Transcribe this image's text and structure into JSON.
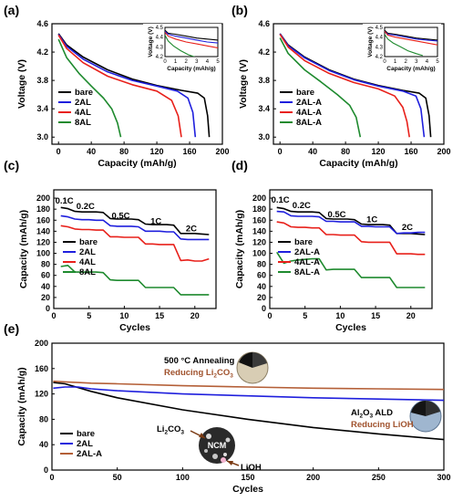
{
  "chart_data": [
    {
      "panel_label": "(a)",
      "type": "line",
      "xlabel": "Capacity (mAh/g)",
      "ylabel": "Voltage (V)",
      "xlim": [
        -8,
        200
      ],
      "ylim": [
        2.9,
        4.6
      ],
      "xticks": [
        0,
        40,
        80,
        120,
        160,
        200
      ],
      "yticks": [
        3.0,
        3.4,
        3.8,
        4.2,
        4.6
      ],
      "legend_position": "lower-left",
      "series": [
        {
          "name": "bare",
          "color": "#000000",
          "x": [
            0,
            10,
            30,
            60,
            90,
            120,
            150,
            170,
            178,
            182,
            184
          ],
          "y": [
            4.46,
            4.3,
            4.13,
            3.95,
            3.82,
            3.73,
            3.66,
            3.62,
            3.55,
            3.3,
            3.0
          ]
        },
        {
          "name": "2AL",
          "color": "#1f1fdd",
          "x": [
            0,
            10,
            30,
            60,
            90,
            120,
            145,
            158,
            164,
            167
          ],
          "y": [
            4.45,
            4.28,
            4.1,
            3.92,
            3.8,
            3.72,
            3.65,
            3.55,
            3.35,
            3.0
          ]
        },
        {
          "name": "4AL",
          "color": "#e8201a",
          "x": [
            0,
            10,
            30,
            60,
            90,
            120,
            138,
            146,
            150
          ],
          "y": [
            4.44,
            4.25,
            4.05,
            3.86,
            3.74,
            3.65,
            3.52,
            3.3,
            3.0
          ]
        },
        {
          "name": "8AL",
          "color": "#1e8a2e",
          "x": [
            0,
            10,
            25,
            40,
            55,
            65,
            72,
            76
          ],
          "y": [
            4.38,
            4.12,
            3.9,
            3.72,
            3.55,
            3.4,
            3.2,
            3.0
          ]
        }
      ],
      "inset": {
        "xlabel": "Capacity (mAh/g)",
        "ylabel": "Voltage (V)",
        "xlim": [
          0,
          5
        ],
        "ylim": [
          4.2,
          4.5
        ],
        "xticks": [
          0,
          1,
          2,
          3,
          4,
          5
        ],
        "yticks": [
          4.2,
          4.3,
          4.4,
          4.5
        ],
        "series": [
          {
            "color": "#000000",
            "x": [
              0,
              0.3,
              1,
              2,
              3,
              4,
              5
            ],
            "y": [
              4.47,
              4.44,
              4.43,
              4.41,
              4.39,
              4.38,
              4.37
            ]
          },
          {
            "color": "#1f1fdd",
            "x": [
              0,
              0.3,
              1,
              2,
              3,
              4,
              5
            ],
            "y": [
              4.46,
              4.43,
              4.41,
              4.39,
              4.37,
              4.35,
              4.34
            ]
          },
          {
            "color": "#e8201a",
            "x": [
              0,
              0.3,
              1,
              2,
              3,
              4,
              5
            ],
            "y": [
              4.45,
              4.41,
              4.38,
              4.35,
              4.33,
              4.31,
              4.29
            ]
          },
          {
            "color": "#1e8a2e",
            "x": [
              0,
              0.3,
              0.8,
              1.5,
              2.2,
              3.0
            ],
            "y": [
              4.42,
              4.36,
              4.31,
              4.26,
              4.22,
              4.19
            ]
          }
        ]
      }
    },
    {
      "panel_label": "(b)",
      "type": "line",
      "xlabel": "Capacity (mAh/g)",
      "ylabel": "Voltage (V)",
      "xlim": [
        -8,
        200
      ],
      "ylim": [
        2.9,
        4.6
      ],
      "xticks": [
        0,
        40,
        80,
        120,
        160,
        200
      ],
      "yticks": [
        3.0,
        3.4,
        3.8,
        4.2,
        4.6
      ],
      "legend_position": "lower-left",
      "series": [
        {
          "name": "bare",
          "color": "#000000",
          "x": [
            0,
            10,
            30,
            60,
            90,
            120,
            150,
            170,
            178,
            182,
            184
          ],
          "y": [
            4.46,
            4.3,
            4.13,
            3.95,
            3.82,
            3.73,
            3.66,
            3.62,
            3.55,
            3.3,
            3.0
          ]
        },
        {
          "name": "2AL-A",
          "color": "#1f1fdd",
          "x": [
            0,
            10,
            30,
            60,
            90,
            120,
            150,
            166,
            172,
            176
          ],
          "y": [
            4.46,
            4.29,
            4.12,
            3.94,
            3.81,
            3.72,
            3.65,
            3.58,
            3.4,
            3.0
          ]
        },
        {
          "name": "4AL-A",
          "color": "#e8201a",
          "x": [
            0,
            10,
            30,
            60,
            90,
            120,
            140,
            150,
            155,
            158
          ],
          "y": [
            4.45,
            4.27,
            4.08,
            3.9,
            3.77,
            3.68,
            3.58,
            3.42,
            3.22,
            3.0
          ]
        },
        {
          "name": "8AL-A",
          "color": "#1e8a2e",
          "x": [
            0,
            10,
            30,
            50,
            70,
            85,
            93,
            98
          ],
          "y": [
            4.4,
            4.18,
            3.95,
            3.78,
            3.6,
            3.45,
            3.28,
            3.0
          ]
        }
      ],
      "inset": {
        "xlabel": "Capacity (mAh/g)",
        "ylabel": "Voltage (V)",
        "xlim": [
          0,
          5
        ],
        "ylim": [
          4.2,
          4.5
        ],
        "xticks": [
          0,
          1,
          2,
          3,
          4,
          5
        ],
        "yticks": [
          4.2,
          4.3,
          4.4,
          4.5
        ],
        "series": [
          {
            "color": "#000000",
            "x": [
              0,
              0.3,
              1,
              2,
              3,
              4,
              5
            ],
            "y": [
              4.47,
              4.44,
              4.43,
              4.41,
              4.39,
              4.38,
              4.37
            ]
          },
          {
            "color": "#1f1fdd",
            "x": [
              0,
              0.3,
              1,
              2,
              3,
              4,
              5
            ],
            "y": [
              4.46,
              4.43,
              4.42,
              4.4,
              4.38,
              4.37,
              4.36
            ]
          },
          {
            "color": "#e8201a",
            "x": [
              0,
              0.3,
              1,
              2,
              3,
              4,
              5
            ],
            "y": [
              4.46,
              4.42,
              4.4,
              4.38,
              4.36,
              4.34,
              4.32
            ]
          },
          {
            "color": "#1e8a2e",
            "x": [
              0,
              0.3,
              0.8,
              1.5,
              2.2,
              3.0,
              3.6
            ],
            "y": [
              4.43,
              4.38,
              4.34,
              4.3,
              4.26,
              4.23,
              4.21
            ]
          }
        ]
      }
    },
    {
      "panel_label": "(c)",
      "type": "line",
      "xlabel": "Cycles",
      "ylabel": "Capacity (mAh/g)",
      "xlim": [
        0,
        23
      ],
      "ylim": [
        0,
        215
      ],
      "xticks": [
        0,
        5,
        10,
        15,
        20
      ],
      "yticks": [
        0,
        20,
        40,
        60,
        80,
        100,
        120,
        140,
        160,
        180,
        200
      ],
      "legend_position": "lower-left",
      "rate_labels": [
        {
          "text": "0.1C",
          "x": 1.5,
          "y": 190
        },
        {
          "text": "0.2C",
          "x": 4.5,
          "y": 180
        },
        {
          "text": "0.5C",
          "x": 9.5,
          "y": 163
        },
        {
          "text": "1C",
          "x": 14.5,
          "y": 153
        },
        {
          "text": "2C",
          "x": 19.5,
          "y": 140
        }
      ],
      "series": [
        {
          "name": "bare",
          "color": "#000000",
          "x": [
            1,
            2,
            3,
            4,
            5,
            6,
            7,
            8,
            9,
            10,
            11,
            12,
            13,
            14,
            15,
            16,
            17,
            18,
            19,
            20,
            21,
            22
          ],
          "y": [
            183,
            181,
            176,
            175,
            175,
            175,
            174,
            163,
            162,
            162,
            162,
            161,
            153,
            152,
            152,
            152,
            151,
            136,
            136,
            136,
            135,
            134
          ]
        },
        {
          "name": "2AL",
          "color": "#1f1fdd",
          "x": [
            1,
            2,
            3,
            4,
            5,
            6,
            7,
            8,
            9,
            10,
            11,
            12,
            13,
            14,
            15,
            16,
            17,
            18,
            19,
            20,
            21,
            22
          ],
          "y": [
            168,
            166,
            162,
            161,
            161,
            160,
            160,
            150,
            149,
            149,
            149,
            148,
            140,
            140,
            140,
            139,
            139,
            126,
            125,
            125,
            125,
            125
          ]
        },
        {
          "name": "4AL",
          "color": "#e8201a",
          "x": [
            1,
            2,
            3,
            4,
            5,
            6,
            7,
            8,
            9,
            10,
            11,
            12,
            13,
            14,
            15,
            16,
            17,
            18,
            19,
            20,
            21,
            22
          ],
          "y": [
            150,
            148,
            144,
            143,
            143,
            142,
            142,
            130,
            130,
            129,
            129,
            129,
            117,
            117,
            116,
            116,
            116,
            87,
            88,
            86,
            86,
            90
          ]
        },
        {
          "name": "8AL",
          "color": "#1e8a2e",
          "x": [
            1,
            2,
            3,
            4,
            5,
            6,
            7,
            8,
            9,
            10,
            11,
            12,
            13,
            14,
            15,
            16,
            17,
            18,
            19,
            20,
            21,
            22
          ],
          "y": [
            76,
            78,
            66,
            66,
            66,
            66,
            65,
            52,
            51,
            51,
            51,
            51,
            38,
            38,
            38,
            38,
            38,
            25,
            25,
            25,
            25,
            25
          ]
        }
      ]
    },
    {
      "panel_label": "(d)",
      "type": "line",
      "xlabel": "Cycles",
      "ylabel": "Capacity (mAh/g)",
      "xlim": [
        0,
        23
      ],
      "ylim": [
        0,
        215
      ],
      "xticks": [
        0,
        5,
        10,
        15,
        20
      ],
      "yticks": [
        0,
        20,
        40,
        60,
        80,
        100,
        120,
        140,
        160,
        180,
        200
      ],
      "legend_position": "lower-left",
      "rate_labels": [
        {
          "text": "0.1C",
          "x": 1.5,
          "y": 192
        },
        {
          "text": "0.2C",
          "x": 4.5,
          "y": 182
        },
        {
          "text": "0.5C",
          "x": 9.5,
          "y": 165
        },
        {
          "text": "1C",
          "x": 14.5,
          "y": 156
        },
        {
          "text": "2C",
          "x": 19.5,
          "y": 142
        }
      ],
      "series": [
        {
          "name": "bare",
          "color": "#000000",
          "x": [
            1,
            2,
            3,
            4,
            5,
            6,
            7,
            8,
            9,
            10,
            11,
            12,
            13,
            14,
            15,
            16,
            17,
            18,
            19,
            20,
            21,
            22
          ],
          "y": [
            183,
            181,
            176,
            175,
            175,
            175,
            174,
            163,
            162,
            162,
            162,
            161,
            153,
            152,
            152,
            152,
            151,
            136,
            136,
            136,
            135,
            134
          ]
        },
        {
          "name": "2AL-A",
          "color": "#1f1fdd",
          "x": [
            1,
            2,
            3,
            4,
            5,
            6,
            7,
            8,
            9,
            10,
            11,
            12,
            13,
            14,
            15,
            16,
            17,
            18,
            19,
            20,
            21,
            22
          ],
          "y": [
            176,
            175,
            168,
            167,
            167,
            167,
            166,
            158,
            158,
            157,
            157,
            157,
            149,
            149,
            148,
            148,
            148,
            136,
            137,
            137,
            138,
            138
          ]
        },
        {
          "name": "4AL-A",
          "color": "#e8201a",
          "x": [
            1,
            2,
            3,
            4,
            5,
            6,
            7,
            8,
            9,
            10,
            11,
            12,
            13,
            14,
            15,
            16,
            17,
            18,
            19,
            20,
            21,
            22
          ],
          "y": [
            157,
            155,
            148,
            147,
            147,
            146,
            146,
            134,
            134,
            133,
            133,
            133,
            121,
            120,
            120,
            120,
            120,
            99,
            99,
            99,
            98,
            98
          ]
        },
        {
          "name": "8AL-A",
          "color": "#1e8a2e",
          "x": [
            1,
            2,
            3,
            4,
            5,
            6,
            7,
            8,
            9,
            10,
            11,
            12,
            13,
            14,
            15,
            16,
            17,
            18,
            19,
            20,
            21,
            22
          ],
          "y": [
            102,
            82,
            86,
            88,
            89,
            90,
            90,
            70,
            71,
            71,
            71,
            71,
            56,
            56,
            56,
            56,
            56,
            38,
            38,
            38,
            38,
            38
          ]
        }
      ]
    },
    {
      "panel_label": "(e)",
      "type": "line",
      "xlabel": "Cycles",
      "ylabel": "Capacity (mAh/g)",
      "xlim": [
        0,
        300
      ],
      "ylim": [
        0,
        200
      ],
      "xticks": [
        0,
        50,
        100,
        150,
        200,
        250,
        300
      ],
      "yticks": [
        0,
        40,
        80,
        120,
        160,
        200
      ],
      "legend_position": "lower-left",
      "series": [
        {
          "name": "bare",
          "color": "#000000",
          "x": [
            1,
            10,
            20,
            30,
            50,
            100,
            150,
            200,
            250,
            300
          ],
          "y": [
            138,
            136,
            130,
            124,
            114,
            95,
            80,
            67,
            57,
            48
          ]
        },
        {
          "name": "2AL",
          "color": "#1f1fdd",
          "x": [
            1,
            10,
            20,
            30,
            50,
            100,
            150,
            200,
            250,
            300
          ],
          "y": [
            129,
            131,
            131,
            128,
            125,
            120,
            117,
            114,
            112,
            110
          ]
        },
        {
          "name": "2AL-A",
          "color": "#b45f37",
          "x": [
            1,
            10,
            20,
            30,
            50,
            100,
            150,
            200,
            250,
            300
          ],
          "y": [
            140,
            139,
            138,
            137,
            136,
            133,
            131,
            129,
            128,
            127
          ]
        }
      ],
      "annotations": {
        "anneal_title": "500 °C Annealing",
        "anneal_sub_prefix": "Reducing Li",
        "anneal_sub_sub1": "2",
        "anneal_sub_mid": "CO",
        "anneal_sub_sub2": "3",
        "ald_prefix": "Al",
        "ald_sub1": "2",
        "ald_mid": "O",
        "ald_sub2": "3",
        "ald_suffix": " ALD",
        "ald_sub": "Reducing LiOH",
        "li2co3_prefix": "Li",
        "li2co3_sub1": "2",
        "li2co3_mid": "CO",
        "li2co3_sub2": "3",
        "ncm": "NCM",
        "lioh": "LiOH"
      }
    }
  ]
}
